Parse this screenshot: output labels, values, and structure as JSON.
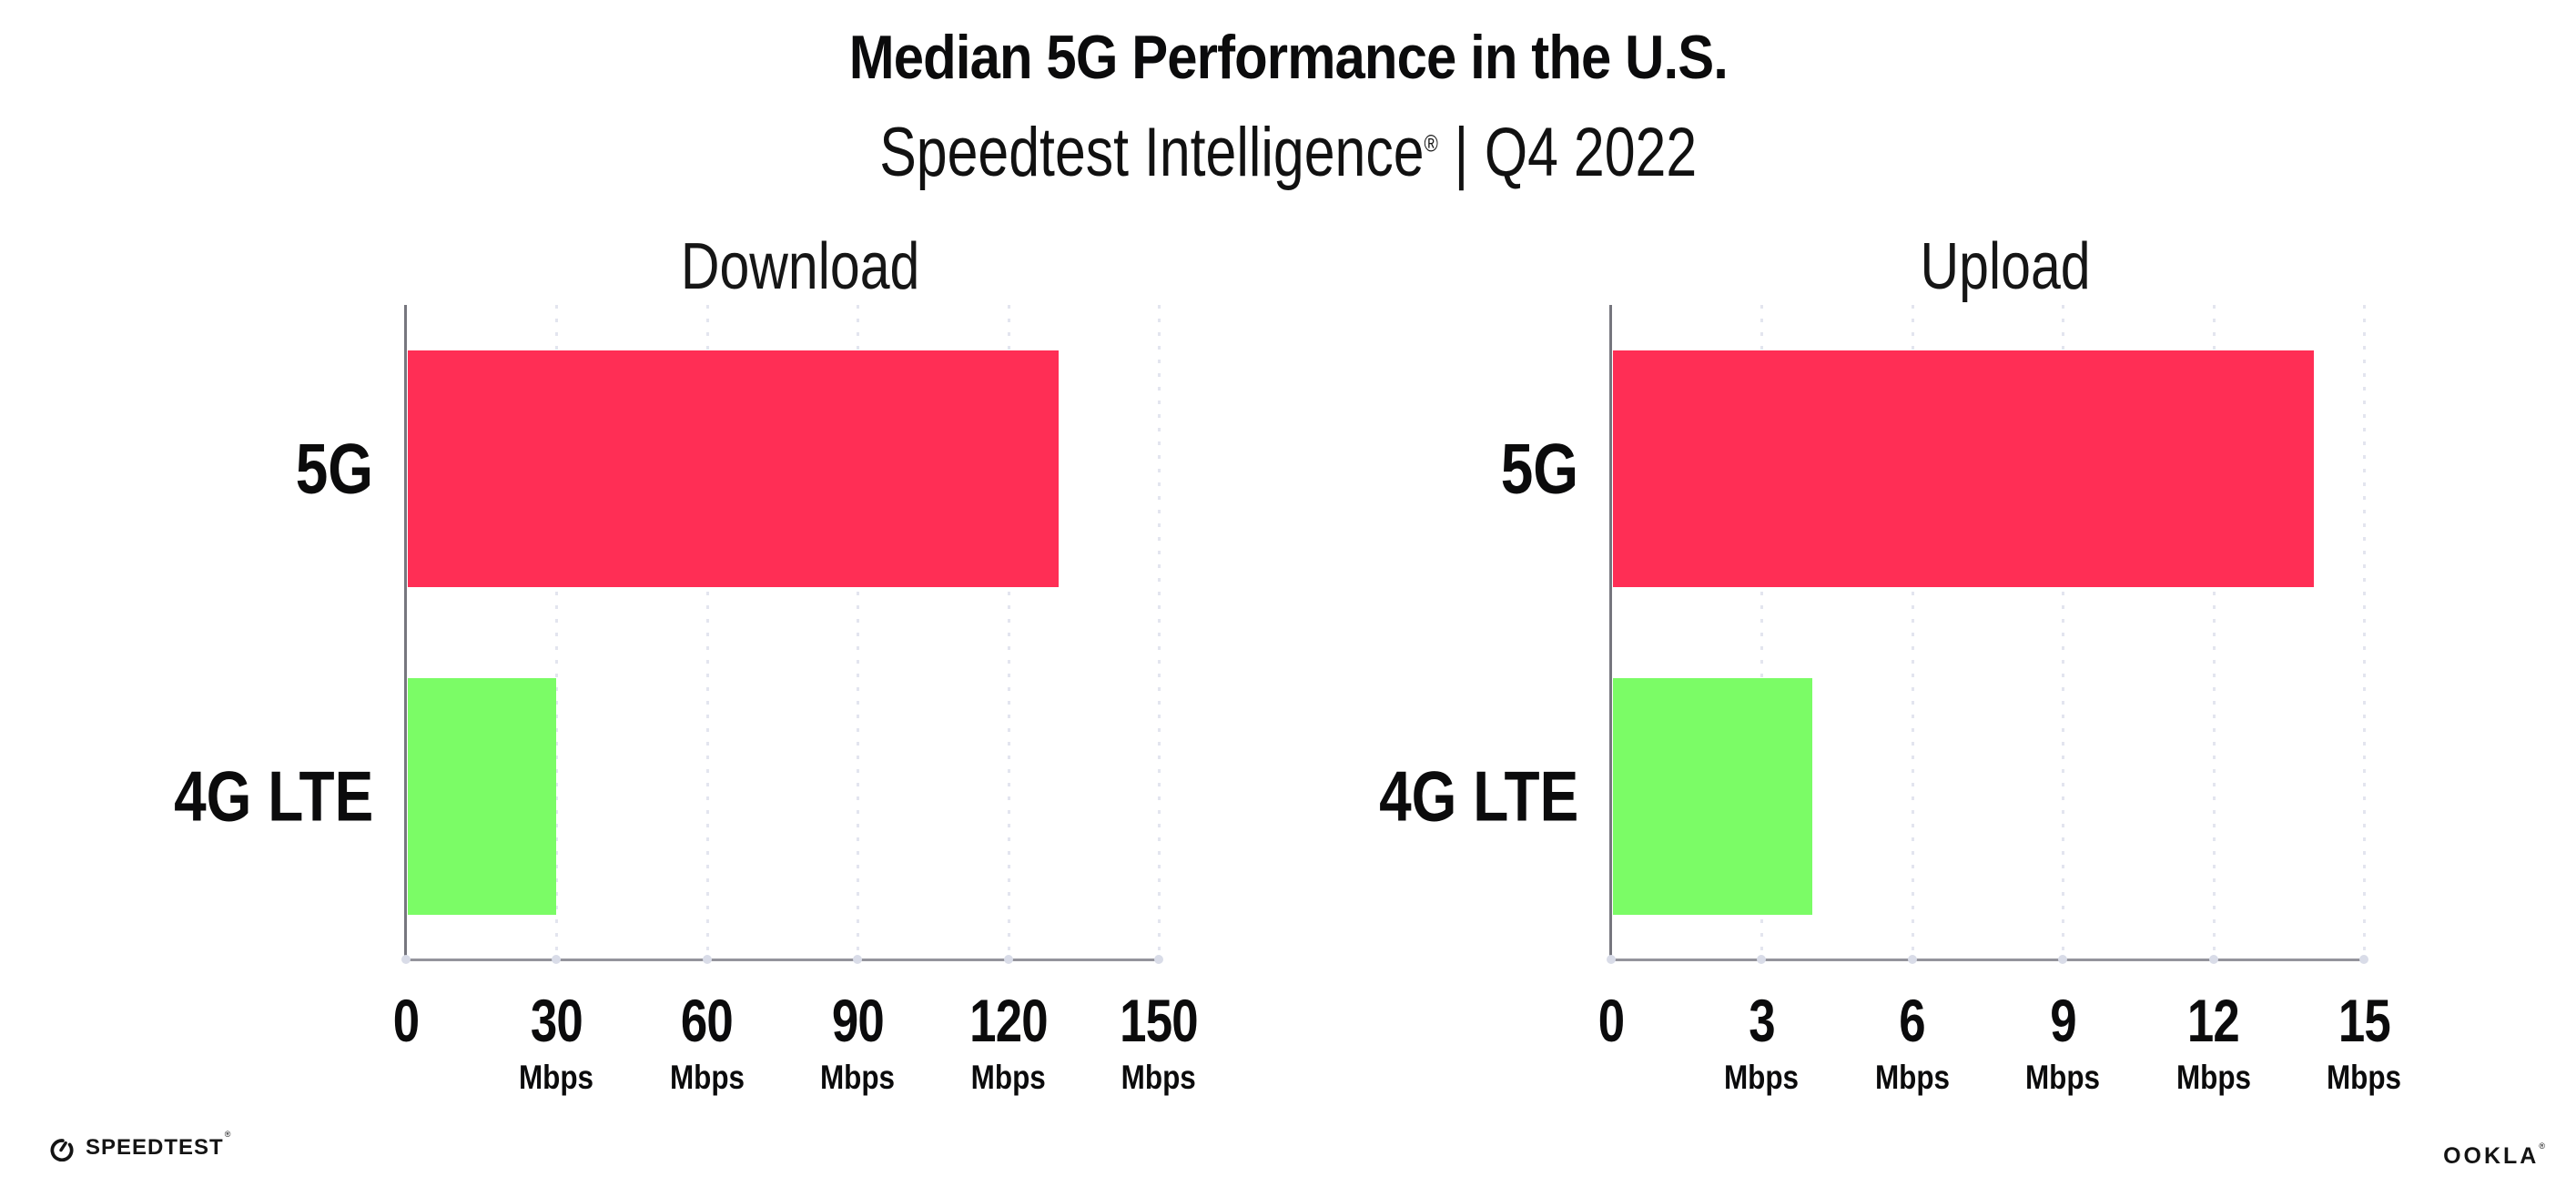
{
  "header": {
    "title": "Median 5G Performance in the U.S.",
    "subtitle": {
      "brand": "Speedtest Intelligence",
      "registered": "®",
      "separator": "|",
      "period": "Q4 2022"
    }
  },
  "chart_data": [
    {
      "type": "bar",
      "orientation": "horizontal",
      "title": "Download",
      "categories": [
        "5G",
        "4G LTE"
      ],
      "values": [
        130,
        30
      ],
      "unit": "Mbps",
      "xlim": [
        0,
        150
      ],
      "xticks": [
        0,
        30,
        60,
        90,
        120,
        150
      ],
      "bar_colors": [
        "#FF2E55",
        "#7BFC66"
      ],
      "grid": "vertical-dotted",
      "legend": "none"
    },
    {
      "type": "bar",
      "orientation": "horizontal",
      "title": "Upload",
      "categories": [
        "5G",
        "4G LTE"
      ],
      "values": [
        14,
        4
      ],
      "unit": "Mbps",
      "xlim": [
        0,
        15
      ],
      "xticks": [
        0,
        3,
        6,
        9,
        12,
        15
      ],
      "bar_colors": [
        "#FF2E55",
        "#7BFC66"
      ],
      "grid": "vertical-dotted",
      "legend": "none"
    }
  ],
  "footer": {
    "speedtest": {
      "label": "SPEEDTEST",
      "registered": "®"
    },
    "ookla": {
      "label": "OOKLA",
      "registered": "®"
    }
  },
  "colors": {
    "background": "#FFFFFF",
    "bar_5g": "#FF2E55",
    "bar_4g_lte": "#7BFC66",
    "y_axis_line": "#76767E",
    "baseline": "#94949C",
    "gridline": "#E3E5EF",
    "tick_dot": "#D9DCE8",
    "text": "#0B0B0C"
  }
}
